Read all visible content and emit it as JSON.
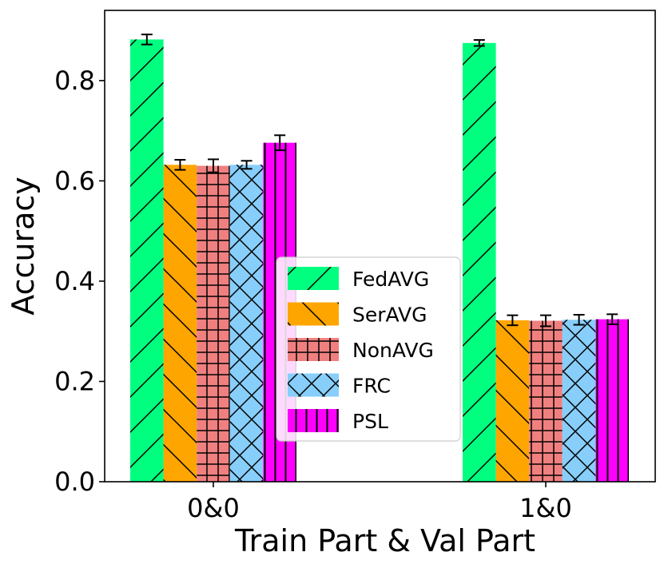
{
  "chart_data": {
    "type": "bar",
    "title": "",
    "xlabel": "Train Part & Val Part",
    "ylabel": "Accuracy",
    "categories": [
      "0&0",
      "1&0"
    ],
    "ylim": [
      0,
      0.94
    ],
    "yticks": [
      0.0,
      0.2,
      0.4,
      0.6,
      0.8
    ],
    "ytick_labels": [
      "0.0",
      "0.2",
      "0.4",
      "0.6",
      "0.8"
    ],
    "series": [
      {
        "name": "FedAVG",
        "color": "#00ff7f",
        "hatch": "slash",
        "values": [
          0.882,
          0.875
        ],
        "errors": [
          0.01,
          0.006
        ]
      },
      {
        "name": "SerAVG",
        "color": "#ffa500",
        "hatch": "backslash",
        "values": [
          0.632,
          0.322
        ],
        "errors": [
          0.01,
          0.01
        ]
      },
      {
        "name": "NonAVG",
        "color": "#f08080",
        "hatch": "grid",
        "values": [
          0.63,
          0.321
        ],
        "errors": [
          0.013,
          0.011
        ]
      },
      {
        "name": "FRC",
        "color": "#87cefa",
        "hatch": "cross",
        "values": [
          0.632,
          0.323
        ],
        "errors": [
          0.008,
          0.01
        ]
      },
      {
        "name": "PSL",
        "color": "#ff00ff",
        "hatch": "vertical",
        "values": [
          0.676,
          0.324
        ],
        "errors": [
          0.015,
          0.01
        ]
      }
    ],
    "legend_position": "center"
  }
}
